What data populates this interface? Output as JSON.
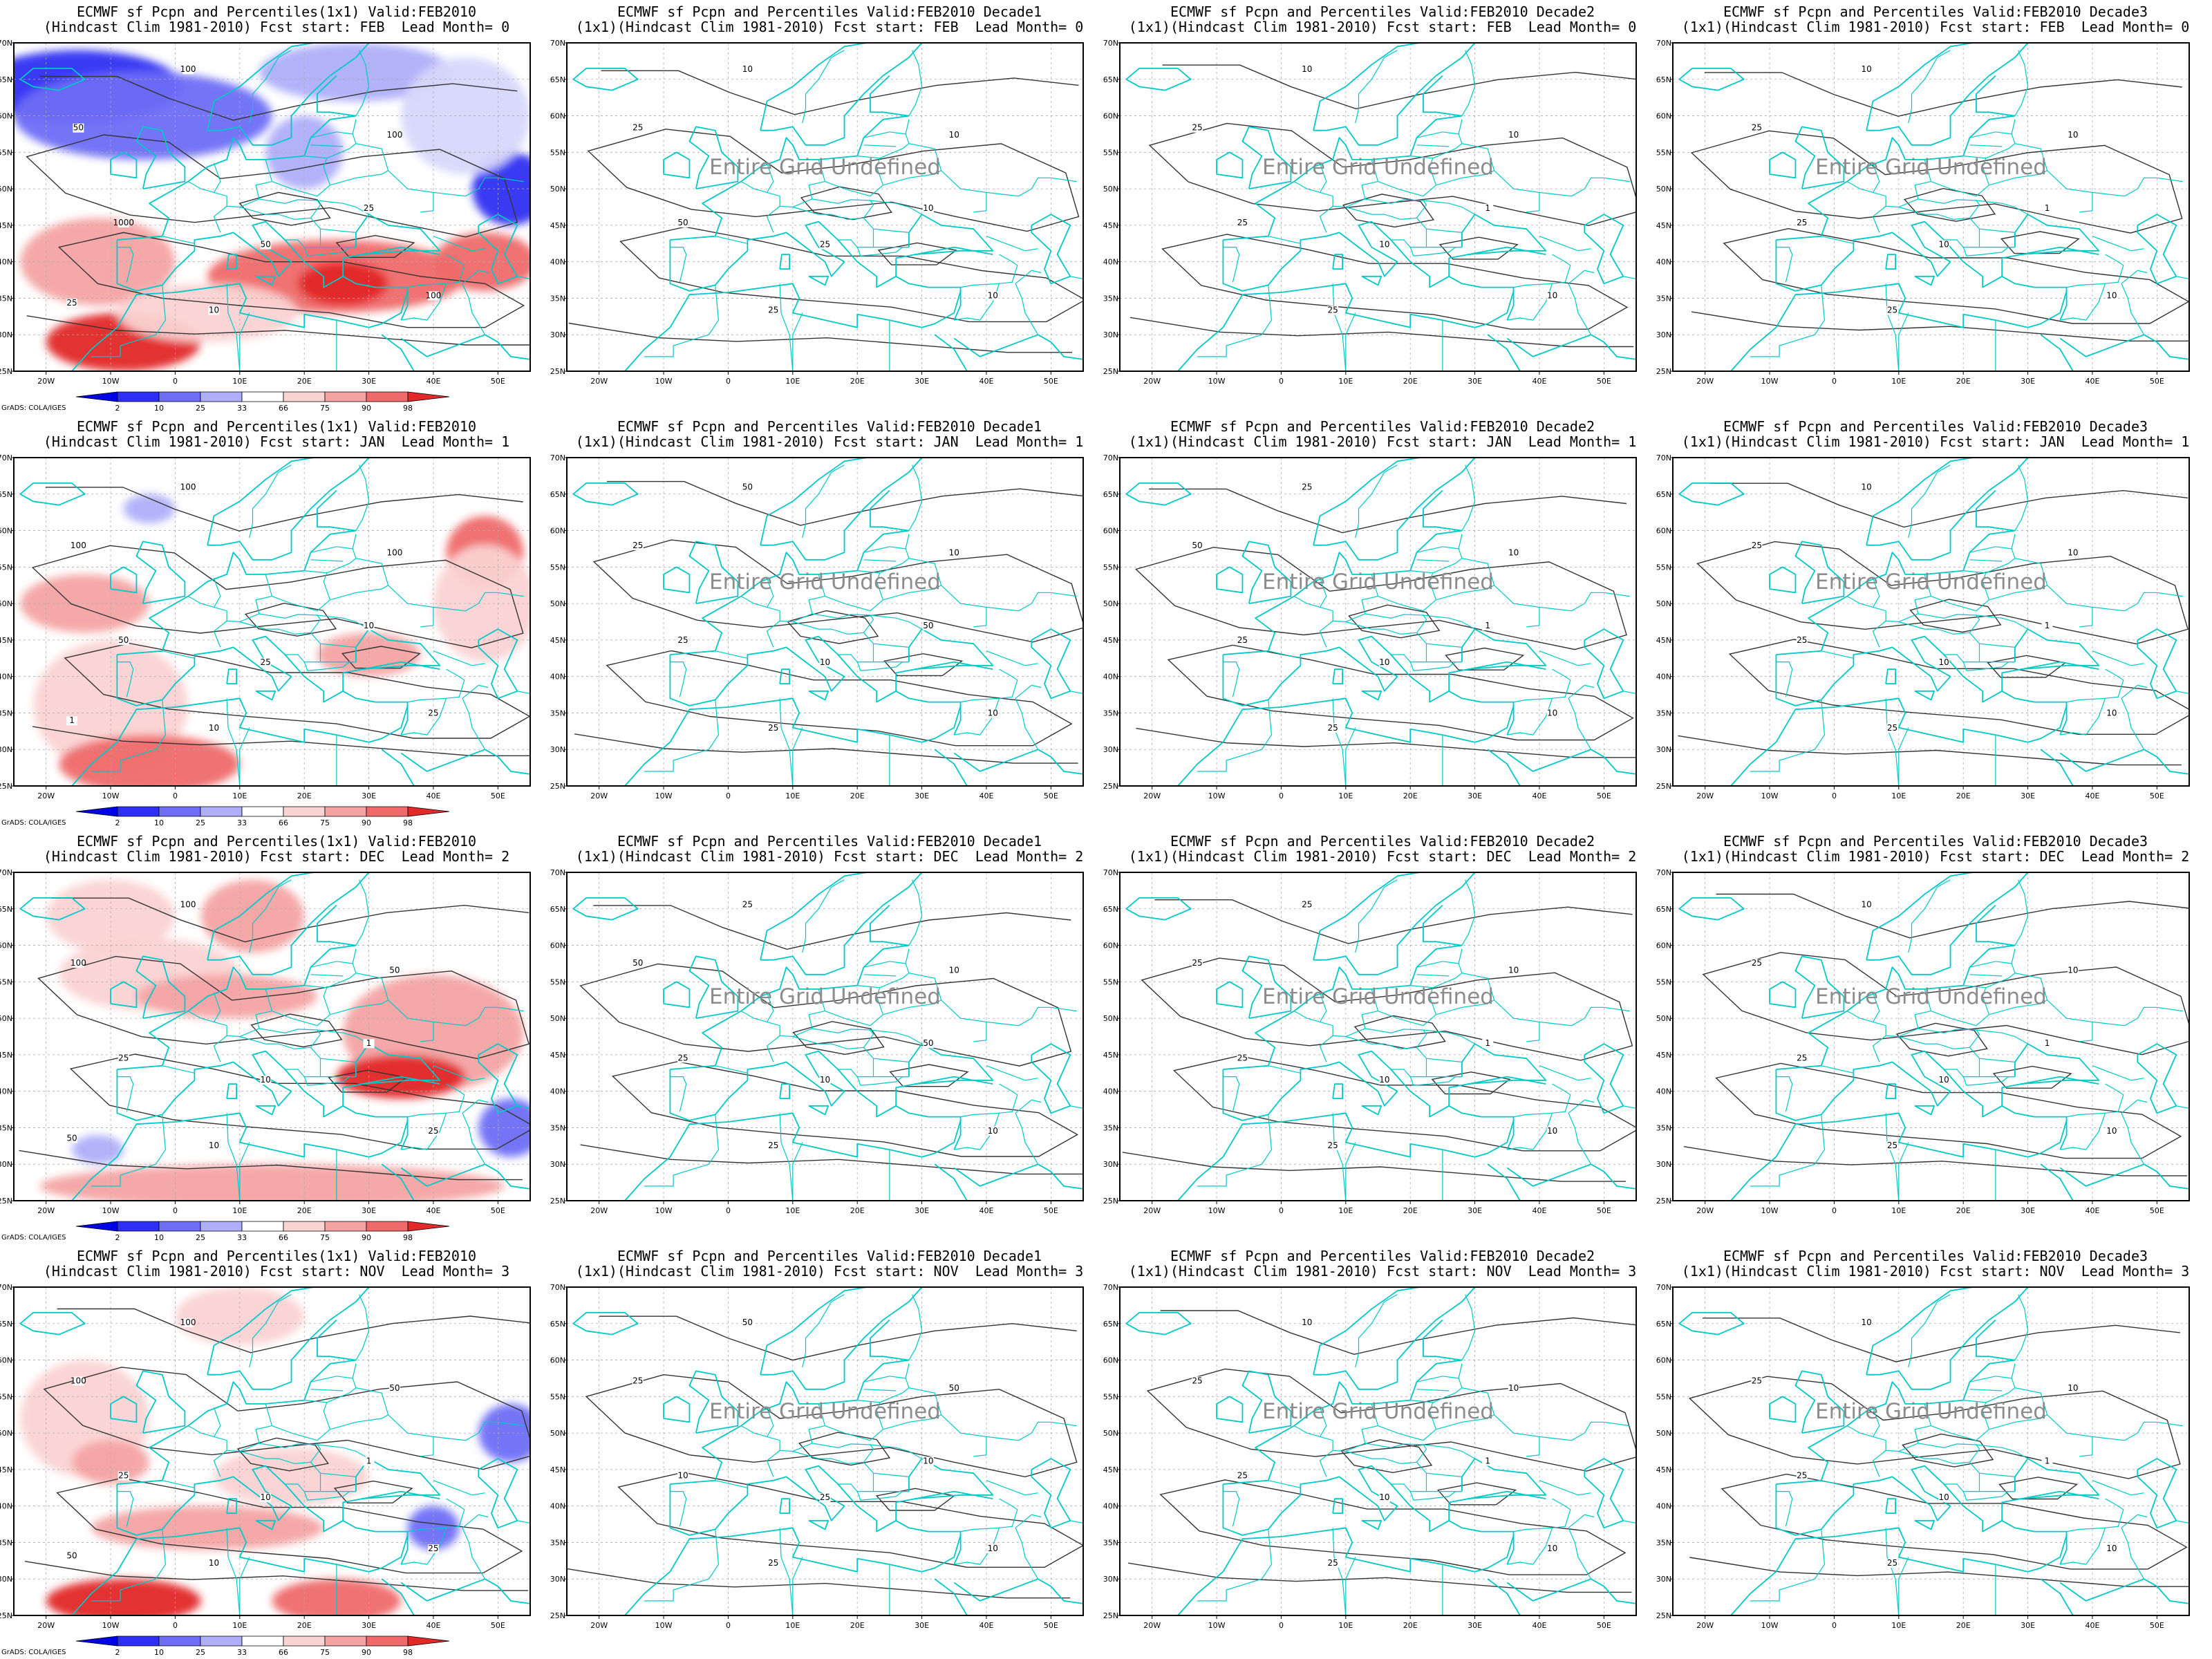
{
  "rows": [
    {
      "lead": "Lead Month= 0",
      "fcst_start": "FEB",
      "panels": [
        {
          "title1": "ECMWF sf Pcpn and Percentiles(1x1) Valid:FEB2010",
          "title2": "(Hindcast Clim 1981-2010) Fcst start: FEB  Lead Month= 0",
          "shaded": true,
          "blobs": [
            {
              "lon": -15,
              "lat": 64,
              "rx": 16,
              "ry": 5,
              "color": "#2f2ff2"
            },
            {
              "lon": -5,
              "lat": 60,
              "rx": 20,
              "ry": 6,
              "color": "#6e6ef7"
            },
            {
              "lon": 28,
              "lat": 66,
              "rx": 15,
              "ry": 4,
              "color": "#aeaef9"
            },
            {
              "lon": 20,
              "lat": 55,
              "rx": 6,
              "ry": 5,
              "color": "#aeaef9"
            },
            {
              "lon": 52,
              "lat": 50,
              "rx": 6,
              "ry": 5,
              "color": "#2f2ff2"
            },
            {
              "lon": 45,
              "lat": 60,
              "rx": 10,
              "ry": 8,
              "color": "#d7d7fb"
            },
            {
              "lon": -12,
              "lat": 40,
              "rx": 12,
              "ry": 6,
              "color": "#f4a3a3"
            },
            {
              "lon": 25,
              "lat": 38,
              "rx": 20,
              "ry": 5,
              "color": "#ef6a6a"
            },
            {
              "lon": 26,
              "lat": 37,
              "rx": 7,
              "ry": 3,
              "color": "#e22828"
            },
            {
              "lon": -8,
              "lat": 29,
              "rx": 12,
              "ry": 4,
              "color": "#e22828"
            },
            {
              "lon": 48,
              "lat": 40,
              "rx": 8,
              "ry": 4,
              "color": "#ef6a6a"
            },
            {
              "lon": 5,
              "lat": 33,
              "rx": 14,
              "ry": 4,
              "color": "#fbd3d3"
            }
          ],
          "contour_labels": [
            "50",
            "100",
            "100",
            "1000",
            "50",
            "25",
            "10",
            "100",
            "25"
          ],
          "undefined_text": ""
        },
        {
          "title1": "ECMWF sf Pcpn and Percentiles Valid:FEB2010 Decade1",
          "title2": "(1x1)(Hindcast Clim 1981-2010) Fcst start: FEB  Lead Month= 0",
          "shaded": false,
          "blobs": [],
          "contour_labels": [
            "25",
            "10",
            "10",
            "50",
            "25",
            "10",
            "25",
            "10"
          ],
          "undefined_text": "Entire Grid Undefined"
        },
        {
          "title1": "ECMWF sf Pcpn and Percentiles Valid:FEB2010 Decade2",
          "title2": "(1x1)(Hindcast Clim 1981-2010) Fcst start: FEB  Lead Month= 0",
          "shaded": false,
          "blobs": [],
          "contour_labels": [
            "25",
            "10",
            "10",
            "25",
            "10",
            "1",
            "25",
            "10"
          ],
          "undefined_text": "Entire Grid Undefined"
        },
        {
          "title1": "ECMWF sf Pcpn and Percentiles Valid:FEB2010 Decade3",
          "title2": "(1x1)(Hindcast Clim 1981-2010) Fcst start: FEB  Lead Month= 0",
          "shaded": false,
          "blobs": [],
          "contour_labels": [
            "25",
            "10",
            "10",
            "25",
            "10",
            "1",
            "25",
            "10"
          ],
          "undefined_text": "Entire Grid Undefined"
        }
      ]
    },
    {
      "lead": "Lead Month= 1",
      "fcst_start": "JAN",
      "panels": [
        {
          "title1": "ECMWF sf Pcpn and Percentiles(1x1) Valid:FEB2010",
          "title2": "(Hindcast Clim 1981-2010) Fcst start: JAN  Lead Month= 1",
          "shaded": true,
          "blobs": [
            {
              "lon": -14,
              "lat": 50,
              "rx": 10,
              "ry": 4,
              "color": "#f4a3a3"
            },
            {
              "lon": -10,
              "lat": 36,
              "rx": 12,
              "ry": 9,
              "color": "#fbd3d3"
            },
            {
              "lon": -4,
              "lat": 28,
              "rx": 14,
              "ry": 4,
              "color": "#ef6a6a"
            },
            {
              "lon": 48,
              "lat": 57,
              "rx": 6,
              "ry": 5,
              "color": "#ef6a6a"
            },
            {
              "lon": 48,
              "lat": 50,
              "rx": 8,
              "ry": 8,
              "color": "#fbd3d3"
            },
            {
              "lon": 30,
              "lat": 43,
              "rx": 8,
              "ry": 3,
              "color": "#f4a3a3"
            },
            {
              "lon": -4,
              "lat": 63,
              "rx": 4,
              "ry": 2,
              "color": "#aeaef9"
            }
          ],
          "contour_labels": [
            "100",
            "100",
            "100",
            "50",
            "25",
            "10",
            "10",
            "25",
            "1"
          ],
          "undefined_text": ""
        },
        {
          "title1": "ECMWF sf Pcpn and Percentiles Valid:FEB2010 Decade1",
          "title2": "(1x1)(Hindcast Clim 1981-2010) Fcst start: JAN  Lead Month= 1",
          "shaded": false,
          "blobs": [],
          "contour_labels": [
            "25",
            "50",
            "10",
            "25",
            "10",
            "50",
            "25",
            "10"
          ],
          "undefined_text": "Entire Grid Undefined"
        },
        {
          "title1": "ECMWF sf Pcpn and Percentiles Valid:FEB2010 Decade2",
          "title2": "(1x1)(Hindcast Clim 1981-2010) Fcst start: JAN  Lead Month= 1",
          "shaded": false,
          "blobs": [],
          "contour_labels": [
            "50",
            "25",
            "10",
            "25",
            "10",
            "1",
            "25",
            "10"
          ],
          "undefined_text": "Entire Grid Undefined"
        },
        {
          "title1": "ECMWF sf Pcpn and Percentiles Valid:FEB2010 Decade3",
          "title2": "(1x1)(Hindcast Clim 1981-2010) Fcst start: JAN  Lead Month= 1",
          "shaded": false,
          "blobs": [],
          "contour_labels": [
            "25",
            "10",
            "10",
            "25",
            "10",
            "1",
            "25",
            "10"
          ],
          "undefined_text": "Entire Grid Undefined"
        }
      ]
    },
    {
      "lead": "Lead Month= 2",
      "fcst_start": "DEC",
      "panels": [
        {
          "title1": "ECMWF sf Pcpn and Percentiles(1x1) Valid:FEB2010",
          "title2": "(Hindcast Clim 1981-2010) Fcst start: DEC  Lead Month= 2",
          "shaded": true,
          "blobs": [
            {
              "lon": -10,
              "lat": 64,
              "rx": 10,
              "ry": 5,
              "color": "#fbd3d3"
            },
            {
              "lon": 12,
              "lat": 64,
              "rx": 8,
              "ry": 5,
              "color": "#f4a3a3"
            },
            {
              "lon": -4,
              "lat": 56,
              "rx": 14,
              "ry": 5,
              "color": "#fbd3d3"
            },
            {
              "lon": 8,
              "lat": 53,
              "rx": 14,
              "ry": 3,
              "color": "#f4a3a3"
            },
            {
              "lon": 40,
              "lat": 48,
              "rx": 14,
              "ry": 8,
              "color": "#f4a3a3"
            },
            {
              "lon": 35,
              "lat": 42,
              "rx": 10,
              "ry": 3,
              "color": "#e22828"
            },
            {
              "lon": 52,
              "lat": 35,
              "rx": 5,
              "ry": 4,
              "color": "#6e6ef7"
            },
            {
              "lon": 15,
              "lat": 27,
              "rx": 36,
              "ry": 3,
              "color": "#f4a3a3"
            },
            {
              "lon": -12,
              "lat": 32,
              "rx": 4,
              "ry": 2,
              "color": "#aeaef9"
            }
          ],
          "contour_labels": [
            "100",
            "100",
            "50",
            "25",
            "10",
            "1",
            "10",
            "25",
            "50"
          ],
          "undefined_text": ""
        },
        {
          "title1": "ECMWF sf Pcpn and Percentiles Valid:FEB2010 Decade1",
          "title2": "(1x1)(Hindcast Clim 1981-2010) Fcst start: DEC  Lead Month= 2",
          "shaded": false,
          "blobs": [],
          "contour_labels": [
            "50",
            "25",
            "10",
            "25",
            "10",
            "50",
            "25",
            "10"
          ],
          "undefined_text": "Entire Grid Undefined"
        },
        {
          "title1": "ECMWF sf Pcpn and Percentiles Valid:FEB2010 Decade2",
          "title2": "(1x1)(Hindcast Clim 1981-2010) Fcst start: DEC  Lead Month= 2",
          "shaded": false,
          "blobs": [],
          "contour_labels": [
            "25",
            "25",
            "10",
            "25",
            "10",
            "1",
            "25",
            "10"
          ],
          "undefined_text": "Entire Grid Undefined"
        },
        {
          "title1": "ECMWF sf Pcpn and Percentiles Valid:FEB2010 Decade3",
          "title2": "(1x1)(Hindcast Clim 1981-2010) Fcst start: DEC  Lead Month= 2",
          "shaded": false,
          "blobs": [],
          "contour_labels": [
            "25",
            "10",
            "10",
            "25",
            "10",
            "1",
            "25",
            "10"
          ],
          "undefined_text": "Entire Grid Undefined"
        }
      ]
    },
    {
      "lead": "Lead Month= 3",
      "fcst_start": "NOV",
      "panels": [
        {
          "title1": "ECMWF sf Pcpn and Percentiles(1x1) Valid:FEB2010",
          "title2": "(Hindcast Clim 1981-2010) Fcst start: NOV  Lead Month= 3",
          "shaded": true,
          "blobs": [
            {
              "lon": -14,
              "lat": 52,
              "rx": 10,
              "ry": 8,
              "color": "#fbd3d3"
            },
            {
              "lon": -10,
              "lat": 46,
              "rx": 6,
              "ry": 3,
              "color": "#f4a3a3"
            },
            {
              "lon": 18,
              "lat": 44,
              "rx": 12,
              "ry": 4,
              "color": "#fbd3d3"
            },
            {
              "lon": 5,
              "lat": 37,
              "rx": 18,
              "ry": 3,
              "color": "#f4a3a3"
            },
            {
              "lon": 40,
              "lat": 37,
              "rx": 4,
              "ry": 3,
              "color": "#6e6ef7"
            },
            {
              "lon": 52,
              "lat": 50,
              "rx": 5,
              "ry": 4,
              "color": "#6e6ef7"
            },
            {
              "lon": -8,
              "lat": 27,
              "rx": 12,
              "ry": 3,
              "color": "#e22828"
            },
            {
              "lon": 25,
              "lat": 27,
              "rx": 10,
              "ry": 3,
              "color": "#ef6a6a"
            },
            {
              "lon": 10,
              "lat": 66,
              "rx": 10,
              "ry": 4,
              "color": "#fbd3d3"
            }
          ],
          "contour_labels": [
            "100",
            "100",
            "50",
            "25",
            "10",
            "1",
            "10",
            "25",
            "50"
          ],
          "undefined_text": ""
        },
        {
          "title1": "ECMWF sf Pcpn and Percentiles Valid:FEB2010 Decade1",
          "title2": "(1x1)(Hindcast Clim 1981-2010) Fcst start: NOV  Lead Month= 3",
          "shaded": false,
          "blobs": [],
          "contour_labels": [
            "25",
            "50",
            "50",
            "10",
            "25",
            "10",
            "25",
            "10"
          ],
          "undefined_text": "Entire Grid Undefined"
        },
        {
          "title1": "ECMWF sf Pcpn and Percentiles Valid:FEB2010 Decade2",
          "title2": "(1x1)(Hindcast Clim 1981-2010) Fcst start: NOV  Lead Month= 3",
          "shaded": false,
          "blobs": [],
          "contour_labels": [
            "25",
            "10",
            "10",
            "25",
            "10",
            "1",
            "25",
            "10"
          ],
          "undefined_text": "Entire Grid Undefined"
        },
        {
          "title1": "ECMWF sf Pcpn and Percentiles Valid:FEB2010 Decade3",
          "title2": "(1x1)(Hindcast Clim 1981-2010) Fcst start: NOV  Lead Month= 3",
          "shaded": false,
          "blobs": [],
          "contour_labels": [
            "25",
            "10",
            "10",
            "25",
            "10",
            "1",
            "25",
            "10"
          ],
          "undefined_text": "Entire Grid Undefined"
        }
      ]
    }
  ],
  "axes": {
    "lon_range": [
      -25,
      55
    ],
    "lat_range": [
      25,
      70
    ],
    "lon_ticks": [
      {
        "value": -20,
        "label": "20W"
      },
      {
        "value": -10,
        "label": "10W"
      },
      {
        "value": 0,
        "label": "0"
      },
      {
        "value": 10,
        "label": "10E"
      },
      {
        "value": 20,
        "label": "20E"
      },
      {
        "value": 30,
        "label": "30E"
      },
      {
        "value": 40,
        "label": "40E"
      },
      {
        "value": 50,
        "label": "50E"
      }
    ],
    "lat_ticks": [
      {
        "value": 25,
        "label": "25N"
      },
      {
        "value": 30,
        "label": "30N"
      },
      {
        "value": 35,
        "label": "35N"
      },
      {
        "value": 40,
        "label": "40N"
      },
      {
        "value": 45,
        "label": "45N"
      },
      {
        "value": 50,
        "label": "50N"
      },
      {
        "value": 55,
        "label": "55N"
      },
      {
        "value": 60,
        "label": "60N"
      },
      {
        "value": 65,
        "label": "65N"
      },
      {
        "value": 70,
        "label": "70N"
      }
    ],
    "grid": true
  },
  "colorbar": {
    "labels": [
      "2",
      "10",
      "25",
      "33",
      "66",
      "75",
      "90",
      "98"
    ],
    "colors": [
      "#0000e6",
      "#2f2ff2",
      "#6e6ef7",
      "#aeaef9",
      "#ffffff",
      "#fbd3d3",
      "#f4a3a3",
      "#ef6a6a",
      "#e22828"
    ]
  },
  "credit": "GrADS: COLA/IGES",
  "colors": {
    "coast": "#00c8c8",
    "contour": "#333333",
    "grid": "#aaaaaa",
    "undefined": "#8c8c8c"
  }
}
